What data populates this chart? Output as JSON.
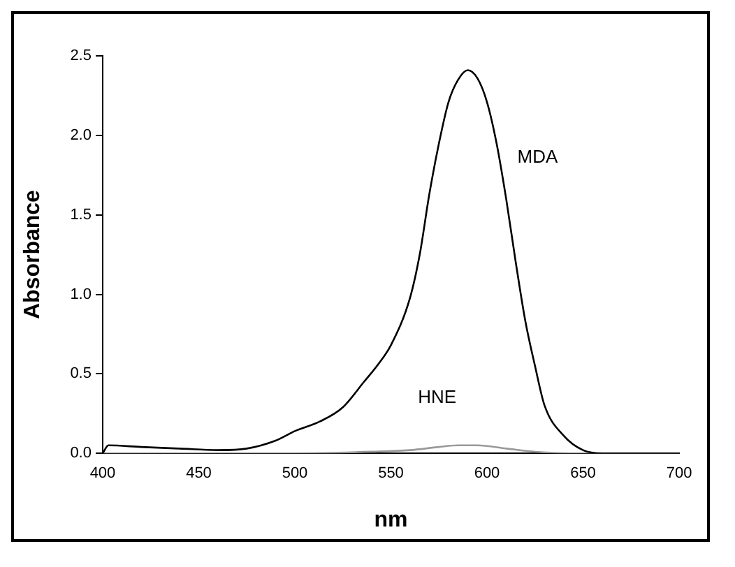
{
  "chart_data": {
    "type": "line",
    "xlabel": "nm",
    "ylabel": "Absorbance",
    "xlim": [
      400,
      700
    ],
    "xticks": [
      400,
      450,
      500,
      550,
      600,
      650,
      700
    ],
    "ylim": [
      0,
      2.5
    ],
    "yticks": [
      {
        "value": 0,
        "label": "0.0"
      },
      {
        "value": 0.5,
        "label": "0.5"
      },
      {
        "value": 1,
        "label": "1.0"
      },
      {
        "value": 1.5,
        "label": "1.5"
      },
      {
        "value": 2,
        "label": "2.0"
      },
      {
        "value": 2.5,
        "label": "2.5"
      }
    ],
    "grid": false,
    "legend": false,
    "marker": "none",
    "line_style": "solid",
    "series": [
      {
        "name": "MDA",
        "color": "#000000",
        "x": [
          400,
          403,
          420,
          440,
          460,
          475,
          490,
          500,
          513,
          525,
          536,
          544,
          550,
          560,
          565,
          570,
          575,
          580,
          585,
          590,
          595,
          600,
          605,
          610,
          615,
          620,
          625,
          630,
          640,
          650,
          660,
          680,
          700
        ],
        "values": [
          0,
          0.05,
          0.04,
          0.03,
          0.02,
          0.03,
          0.08,
          0.14,
          0.2,
          0.29,
          0.45,
          0.57,
          0.68,
          0.98,
          1.25,
          1.63,
          1.95,
          2.21,
          2.35,
          2.41,
          2.36,
          2.21,
          1.95,
          1.6,
          1.2,
          0.83,
          0.55,
          0.3,
          0.11,
          0.02,
          0,
          0,
          0
        ]
      },
      {
        "name": "HNE",
        "color": "#999999",
        "x": [
          400,
          450,
          500,
          540,
          560,
          575,
          585,
          595,
          610,
          625,
          650,
          700
        ],
        "values": [
          0,
          0,
          0,
          0.01,
          0.02,
          0.04,
          0.05,
          0.05,
          0.03,
          0.01,
          0,
          0
        ]
      }
    ]
  }
}
